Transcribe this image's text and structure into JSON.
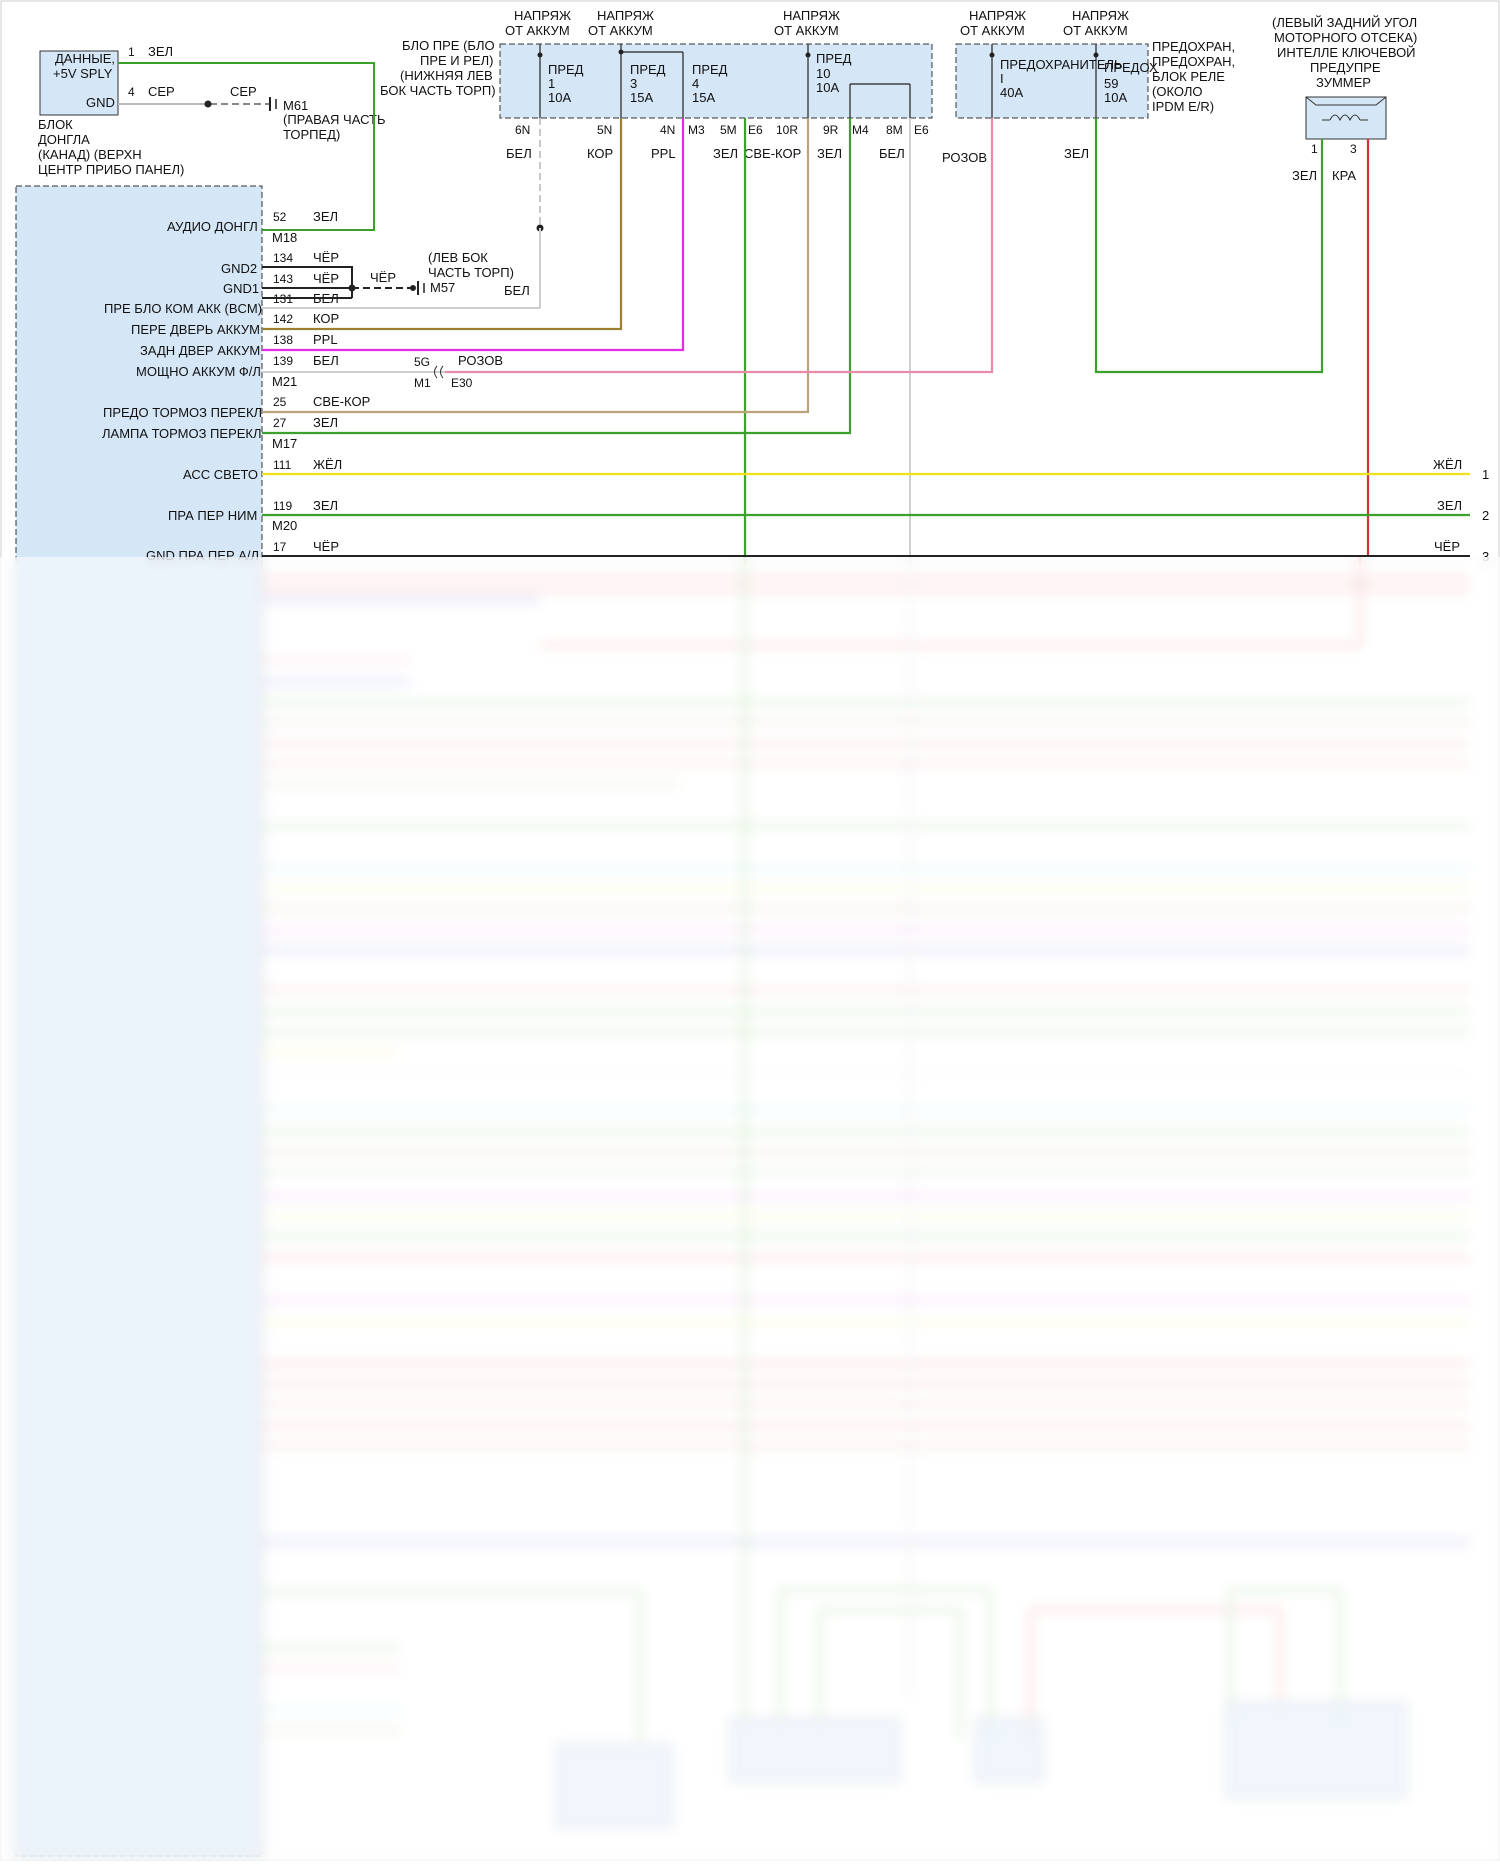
{
  "colors": {
    "green": "#3aa12a",
    "gray": "#b9b9b9",
    "gold": "#9a8030",
    "magenta": "#e22ee2",
    "pink": "#e88aa8",
    "tan": "#b9a37a",
    "yellow": "#f0e21a",
    "red": "#d63030",
    "box_fill": "#d5e6f6"
  },
  "top": {
    "batt_labels": [
      {
        "l1": "НАПРЯЖ",
        "l2": "ОТ АККУМ"
      },
      {
        "l1": "НАПРЯЖ",
        "l2": "ОТ АККУМ"
      },
      {
        "l1": "НАПРЯЖ",
        "l2": "ОТ АККУМ"
      },
      {
        "l1": "НАПРЯЖ",
        "l2": "ОТ АККУМ"
      },
      {
        "l1": "НАПРЯЖ",
        "l2": "ОТ АККУМ"
      }
    ],
    "fuse_block": [
      "БЛО ПРЕ (БЛО",
      "ПРЕ И РЕЛ)",
      "(НИЖНЯЯ ЛЕВ",
      "БОК ЧАСТЬ ТОРП)"
    ],
    "fuses": [
      {
        "name": "ПРЕД",
        "num": "1",
        "amp": "10A"
      },
      {
        "name": "ПРЕД",
        "num": "3",
        "amp": "15A"
      },
      {
        "name": "ПРЕД",
        "num": "4",
        "amp": "15A"
      },
      {
        "name": "ПРЕД",
        "num": "10",
        "amp": "10A"
      }
    ],
    "ipdm_fuses": [
      {
        "name": "ПРЕДОХРАНИТЕЛЬ",
        "num": "I",
        "amp": "40A"
      },
      {
        "name": "ПРЕДОХ",
        "num": "59",
        "amp": "10A"
      }
    ],
    "ipdm_label": [
      "ПРЕДОХРАН,",
      "ПРЕДОХРАН,",
      "БЛОК РЕЛЕ",
      "(ОКОЛО",
      "IPDM E/R)"
    ],
    "fuse_pins": [
      "6N",
      "5N",
      "4N",
      "M3",
      "5M",
      "E6",
      "10R",
      "9R",
      "M4",
      "8M",
      "E6"
    ],
    "wire_colors": [
      "БЕЛ",
      "КОР",
      "PPL",
      "ЗЕЛ",
      "СВЕ-КОР",
      "ЗЕЛ",
      "БЕЛ",
      "РОЗОВ",
      "ЗЕЛ"
    ],
    "buzzer_label": [
      "(ЛЕВЫЙ ЗАДНИЙ УГОЛ",
      "МОТОРНОГО ОТСЕКА)",
      "ИНТЕЛЛЕ КЛЮЧЕВОЙ",
      "ПРЕДУПРЕ",
      "ЗУММЕР"
    ],
    "buzzer_pins": [
      "1",
      "3"
    ],
    "buzzer_wires": [
      "ЗЕЛ",
      "КРА"
    ]
  },
  "dongle": {
    "lines": [
      "ДАННЫЕ,",
      "+5V SPLY"
    ],
    "gnd": "GND",
    "pin1": "1",
    "pin1_color": "ЗЕЛ",
    "pin4": "4",
    "pin4_color": "СЕР",
    "mid_color": "СЕР",
    "ground_id": "M61",
    "ground_label": [
      "(ПРАВАЯ ЧАСТЬ",
      "ТОРПЕД)"
    ],
    "block_label": [
      "БЛОК",
      "ДОНГЛА",
      "(КАНАД) (ВЕРХН",
      "ЦЕНТР ПРИБО ПАНЕЛ)"
    ]
  },
  "bcm": {
    "rows": [
      {
        "label": "АУДИО ДОНГЛ",
        "pin": "52",
        "color": "ЗЕЛ"
      },
      {
        "label": "GND2",
        "pin": "134",
        "color": "ЧЁР"
      },
      {
        "label": "",
        "pin": "143",
        "color": "ЧЁР"
      },
      {
        "label": "GND1",
        "pin": "131",
        "color": "БЕЛ"
      },
      {
        "label": "ПРЕ БЛО КОМ АКК (BCM)",
        "pin": "142",
        "color": "КОР"
      },
      {
        "label": "ПЕРЕ ДВЕРЬ АККУМ",
        "pin": "138",
        "color": "PPL"
      },
      {
        "label": "ЗАДН ДВЕР АККУМ",
        "pin": "139",
        "color": "БЕЛ"
      },
      {
        "label": "МОЩНО АККУМ Ф/Л",
        "pin": "",
        "color": ""
      },
      {
        "label": "ПРЕДО ТОРМОЗ ПЕРЕКЛ",
        "pin": "25",
        "color": "СВЕ-КОР"
      },
      {
        "label": "ЛАМПА ТОРМОЗ ПЕРЕКЛ",
        "pin": "27",
        "color": "ЗЕЛ"
      },
      {
        "label": "АСС СВЕТО",
        "pin": "111",
        "color": "ЖЁЛ"
      },
      {
        "label": "ПРА ПЕР НИМ",
        "pin": "119",
        "color": "ЗЕЛ"
      },
      {
        "label": "GND ПРА ПЕР А/Л",
        "pin": "17",
        "color": "ЧЁР"
      }
    ],
    "connectors": [
      "M18",
      "M21",
      "M17",
      "M20"
    ],
    "ground2_id": "M57",
    "ground2_color": "ЧЁР",
    "ground2_label": [
      "(ЛЕВ БОК",
      "ЧАСТЬ ТОРП)"
    ],
    "ground2_wire": "БЕЛ",
    "splice": {
      "pin_a": "5G",
      "color": "РОЗОВ",
      "conn_a": "M1",
      "conn_b": "E30"
    }
  },
  "right_out": [
    {
      "color": "ЖЁЛ",
      "num": "1"
    },
    {
      "color": "ЗЕЛ",
      "num": "2"
    },
    {
      "color": "ЧЁР",
      "num": "3"
    }
  ]
}
